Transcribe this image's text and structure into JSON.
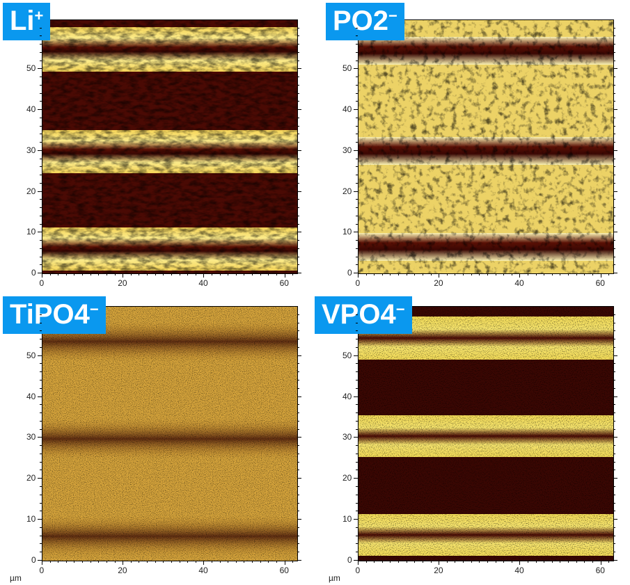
{
  "panels": [
    {
      "id": "li",
      "label": "Li",
      "sup": "+",
      "stripe_type": "dark-gap",
      "base": "#3a0703",
      "bright": "#f6e271"
    },
    {
      "id": "po2",
      "label": "PO2",
      "sup": "−",
      "stripe_type": "bright-bg",
      "base": "#f1dc6e",
      "bright": "#fbf2b0"
    },
    {
      "id": "tipo4",
      "label": "TiPO4",
      "sup": "−",
      "stripe_type": "noisy",
      "base": "#c78e2c",
      "bright": "#f3d660"
    },
    {
      "id": "vpo4",
      "label": "VPO4",
      "sup": "−",
      "stripe_type": "dark-gap",
      "base": "#2e0602",
      "bright": "#f4dc58"
    }
  ],
  "axes": {
    "x_ticks": [
      "0",
      "20",
      "40",
      "60"
    ],
    "y_ticks": [
      "0",
      "10",
      "20",
      "30",
      "40",
      "50"
    ],
    "unit": "µm"
  }
}
